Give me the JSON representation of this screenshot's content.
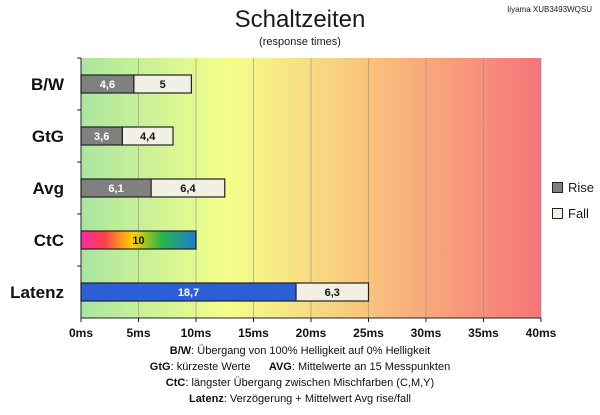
{
  "monitor": "Iiyama XUB3493WQSU",
  "colors": {
    "rise": "#808080",
    "fall": "#f2efe4",
    "latency": "#2a5fd8",
    "bg_stops": [
      "#a9e6a1",
      "#f5ff8a",
      "#f8c47c",
      "#f6747a"
    ]
  },
  "chart_data": {
    "type": "bar",
    "orientation": "horizontal",
    "stacked": true,
    "title": "Schaltzeiten",
    "subtitle": "(response times)",
    "categories": [
      "B/W",
      "GtG",
      "Avg",
      "CtC",
      "Latenz"
    ],
    "series": [
      {
        "name": "Rise",
        "values": [
          4.6,
          3.6,
          6.1,
          10,
          18.7
        ],
        "labels": [
          "4,6",
          "3,6",
          "6,1",
          "10",
          "18,7"
        ]
      },
      {
        "name": "Fall",
        "values": [
          5,
          4.4,
          6.4,
          null,
          6.3
        ],
        "labels": [
          "5",
          "4,4",
          "6,4",
          "",
          "6,3"
        ]
      }
    ],
    "x_ticks": [
      "0ms",
      "5ms",
      "10ms",
      "15ms",
      "20ms",
      "25ms",
      "30ms",
      "35ms",
      "40ms"
    ],
    "xlim": [
      0,
      40
    ],
    "grid": true,
    "legend": "right"
  },
  "notes": [
    {
      "key": "B/W",
      "text": ":  Übergang von 100% Helligkeit auf 0% Helligkeit"
    },
    {
      "key": "GtG",
      "text": ": kürzeste  Werte",
      "key2": "AVG",
      "text2": ": Mittelwerte  an 15 Messpunkten"
    },
    {
      "key": "CtC",
      "text": ": längster Übergang  zwischen Mischfarben  (C,M,Y)"
    },
    {
      "key": "Latenz",
      "text": ": Verzögerung  + Mittelwert  Avg rise/fall"
    }
  ]
}
